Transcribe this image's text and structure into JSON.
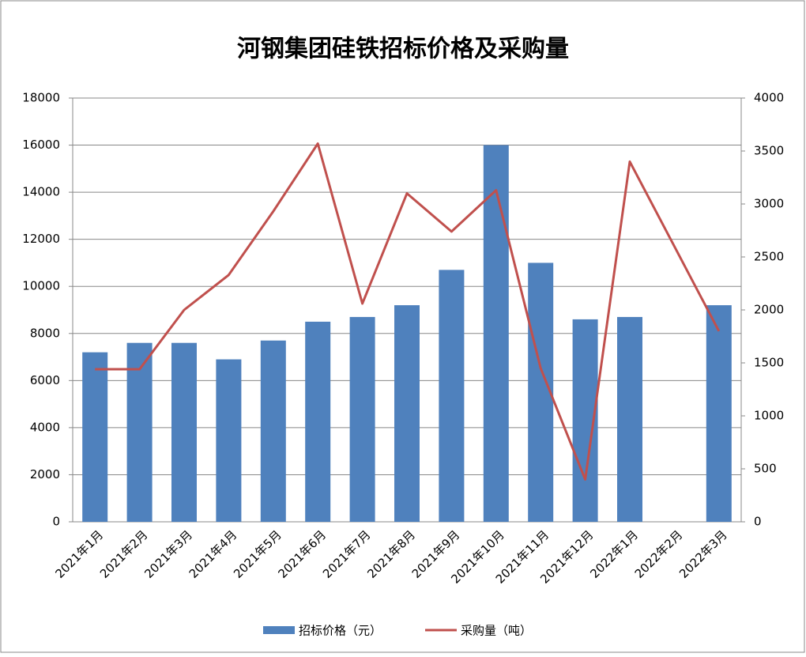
{
  "chart_data": {
    "type": "bar",
    "title": "河钢集团硅铁招标价格及采购量",
    "categories": [
      "2021年1月",
      "2021年2月",
      "2021年3月",
      "2021年4月",
      "2021年5月",
      "2021年6月",
      "2021年7月",
      "2021年8月",
      "2021年9月",
      "2021年10月",
      "2021年11月",
      "2021年12月",
      "2022年1月",
      "2022年2月",
      "2022年3月"
    ],
    "series": [
      {
        "name": "招标价格（元）",
        "type": "bar",
        "color": "#4f81bd",
        "values": [
          7200,
          7600,
          7600,
          6900,
          7700,
          8500,
          8700,
          9200,
          10700,
          16000,
          11000,
          8600,
          8700,
          null,
          9200
        ]
      },
      {
        "name": "采购量（吨）",
        "type": "line",
        "axis": "y2",
        "color": "#c0504d",
        "values": [
          1440,
          1440,
          2000,
          2330,
          2930,
          3570,
          2060,
          3100,
          2740,
          3130,
          1450,
          400,
          3400,
          2600,
          1800
        ]
      }
    ],
    "ylim": [
      0,
      18000
    ],
    "yticks": [
      0,
      2000,
      4000,
      6000,
      8000,
      10000,
      12000,
      14000,
      16000,
      18000
    ],
    "y2lim": [
      0,
      4000
    ],
    "y2ticks": [
      0,
      500,
      1000,
      1500,
      2000,
      2500,
      3000,
      3500,
      4000
    ],
    "grid": true,
    "legend": "bottom"
  }
}
